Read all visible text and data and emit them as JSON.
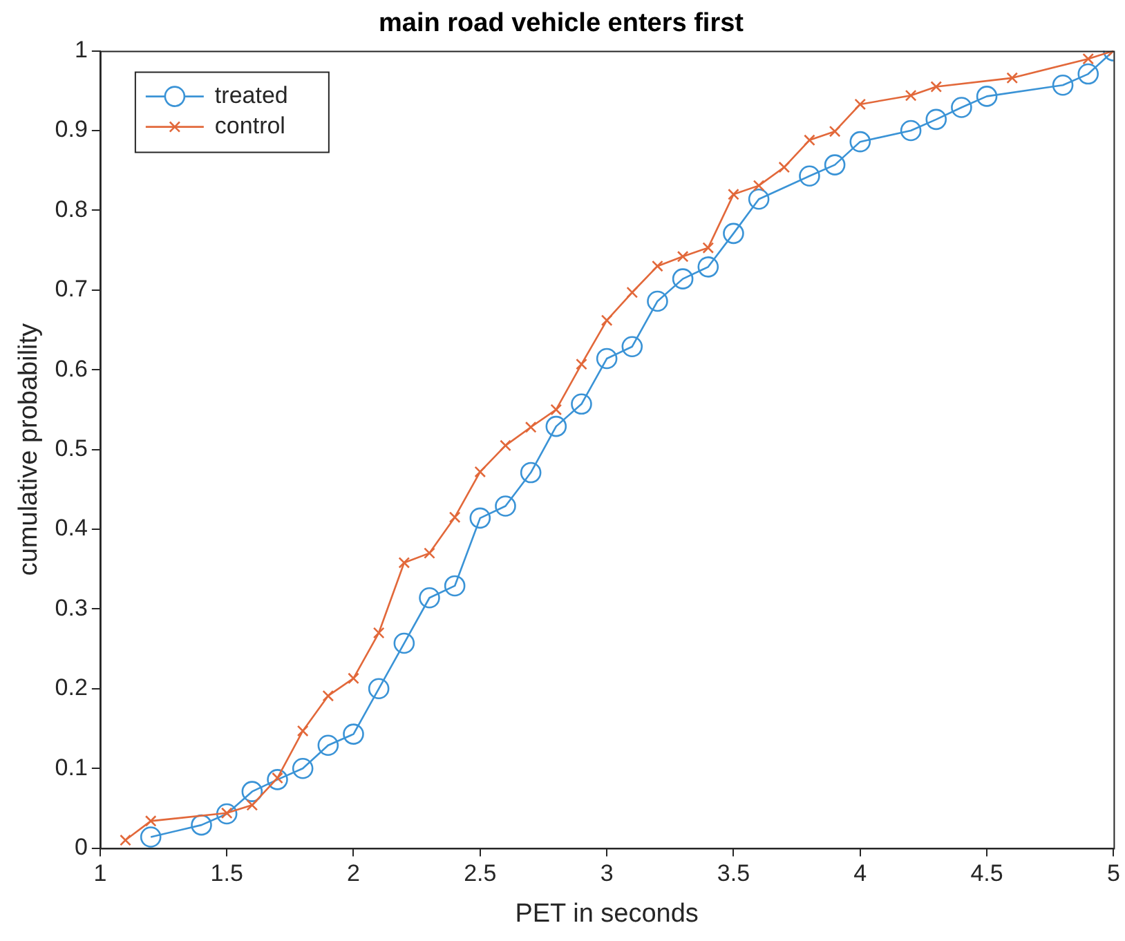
{
  "chart_data": {
    "type": "line",
    "title": "main road vehicle enters first",
    "xlabel": "PET in seconds",
    "ylabel": "cumulative probability",
    "xlim": [
      1,
      5
    ],
    "xticks": [
      1,
      1.5,
      2,
      2.5,
      3,
      3.5,
      4,
      4.5,
      5
    ],
    "ylim": [
      0,
      1
    ],
    "yticks": [
      0,
      0.1,
      0.2,
      0.3,
      0.4,
      0.5,
      0.6,
      0.7,
      0.8,
      0.9,
      1
    ],
    "grid": false,
    "legend": "top left",
    "series": [
      {
        "name": "treated",
        "color": "#3a93d6",
        "marker": "circle",
        "x": [
          1.2,
          1.4,
          1.5,
          1.6,
          1.7,
          1.8,
          1.9,
          2.0,
          2.1,
          2.2,
          2.3,
          2.4,
          2.5,
          2.6,
          2.7,
          2.8,
          2.9,
          3.0,
          3.1,
          3.2,
          3.3,
          3.4,
          3.5,
          3.6,
          3.8,
          3.9,
          4.0,
          4.2,
          4.3,
          4.4,
          4.5,
          4.8,
          4.9,
          5.0
        ],
        "values": [
          0.014,
          0.029,
          0.043,
          0.071,
          0.086,
          0.1,
          0.129,
          0.143,
          0.2,
          0.257,
          0.314,
          0.329,
          0.414,
          0.429,
          0.471,
          0.529,
          0.557,
          0.614,
          0.629,
          0.686,
          0.714,
          0.729,
          0.771,
          0.814,
          0.843,
          0.857,
          0.886,
          0.9,
          0.914,
          0.929,
          0.943,
          0.957,
          0.971,
          1.0
        ]
      },
      {
        "name": "control",
        "color": "#e2683a",
        "marker": "cross",
        "x": [
          1.1,
          1.2,
          1.5,
          1.6,
          1.7,
          1.8,
          1.9,
          2.0,
          2.1,
          2.2,
          2.3,
          2.4,
          2.5,
          2.6,
          2.7,
          2.8,
          2.9,
          3.0,
          3.1,
          3.2,
          3.3,
          3.4,
          3.5,
          3.6,
          3.7,
          3.8,
          3.9,
          4.0,
          4.2,
          4.3,
          4.6,
          4.9,
          5.0
        ],
        "values": [
          0.01,
          0.034,
          0.044,
          0.054,
          0.088,
          0.147,
          0.191,
          0.213,
          0.27,
          0.358,
          0.37,
          0.415,
          0.472,
          0.505,
          0.528,
          0.55,
          0.607,
          0.662,
          0.697,
          0.73,
          0.742,
          0.753,
          0.82,
          0.831,
          0.854,
          0.888,
          0.899,
          0.933,
          0.944,
          0.955,
          0.966,
          0.99,
          1.0
        ]
      }
    ]
  }
}
